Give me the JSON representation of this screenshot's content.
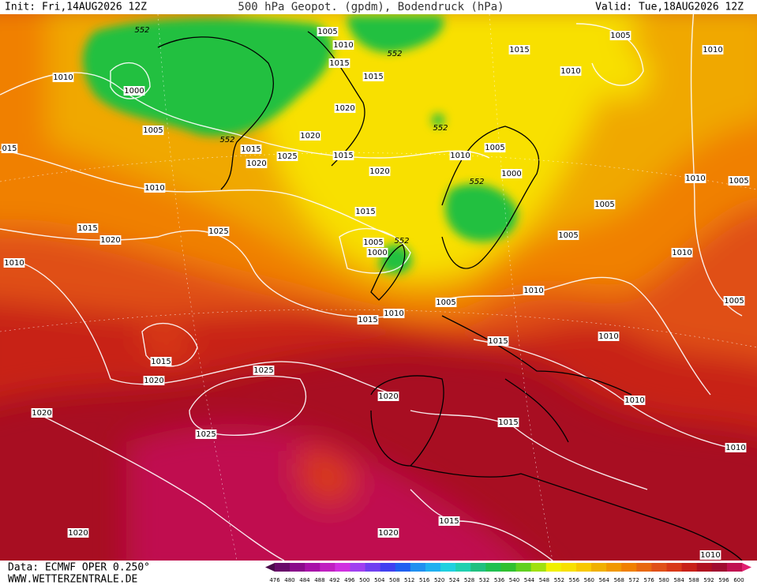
{
  "header": {
    "init": "Init: Fri,14AUG2026 12Z",
    "title": "500 hPa Geopot. (gpdm), Bodendruck (hPa)",
    "valid": "Valid: Tue,18AUG2026 12Z"
  },
  "footer": {
    "data": "Data: ECMWF OPER 0.250°",
    "site": "WWW.WETTERZENTRALE.DE"
  },
  "colorbar": {
    "labels": [
      "476",
      "480",
      "484",
      "488",
      "492",
      "496",
      "500",
      "504",
      "508",
      "512",
      "516",
      "520",
      "524",
      "528",
      "532",
      "536",
      "540",
      "544",
      "548",
      "552",
      "556",
      "560",
      "564",
      "568",
      "572",
      "576",
      "580",
      "584",
      "588",
      "592",
      "596",
      "600"
    ],
    "colors": [
      "#4a0a4a",
      "#6a0a6a",
      "#8a0a8a",
      "#a810a8",
      "#c020c0",
      "#d030e0",
      "#a040f0",
      "#7040f0",
      "#4040f0",
      "#2060f0",
      "#2090f0",
      "#20b0f0",
      "#20d0e0",
      "#20d0b0",
      "#20c080",
      "#20c050",
      "#30c030",
      "#60d020",
      "#a0e010",
      "#f0f000",
      "#f8e000",
      "#f8c800",
      "#f0b000",
      "#f09800",
      "#f08000",
      "#e86810",
      "#e05018",
      "#d83818",
      "#c82018",
      "#b01020",
      "#a00c30",
      "#c01050",
      "#e02070"
    ]
  },
  "map_labels": [
    "552",
    "1005",
    "1010",
    "552",
    "1015",
    "1005",
    "1010",
    "1010",
    "1015",
    "1015",
    "1010",
    "1000",
    "1020",
    "552",
    "1005",
    "552",
    "1020",
    "1015",
    "1025",
    "1015",
    "1005",
    "1010",
    "015",
    "1020",
    "1020",
    "1000",
    "552",
    "1010",
    "1010",
    "1005",
    "1015",
    "1005",
    "1015",
    "1025",
    "1020",
    "1005",
    "1005",
    "552",
    "1000",
    "1010",
    "1010",
    "1010",
    "1005",
    "1010",
    "1015",
    "1005",
    "1010",
    "1015",
    "1015",
    "1020",
    "1025",
    "1020",
    "1010",
    "1020",
    "1015",
    "1025",
    "1010",
    "1015",
    "1020",
    "1020",
    "1010"
  ]
}
